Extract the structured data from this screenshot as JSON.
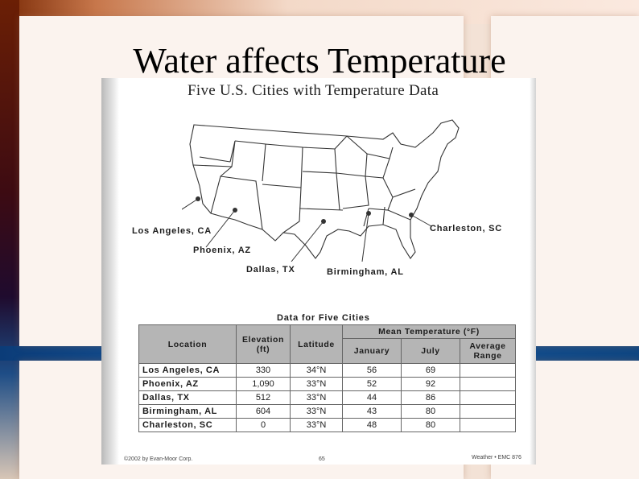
{
  "slide": {
    "title": "Water affects Temperature"
  },
  "worksheet": {
    "map_title": "Five U.S. Cities with Temperature Data",
    "cities": [
      "Los Angeles, CA",
      "Phoenix, AZ",
      "Dallas, TX",
      "Birmingham, AL",
      "Charleston, SC"
    ],
    "table_title": "Data for Five Cities",
    "columns": {
      "location": "Location",
      "elevation": "Elevation (ft)",
      "latitude": "Latitude",
      "mean_temp": "Mean Temperature (°F)",
      "january": "January",
      "july": "July",
      "avg_range": "Average Range"
    },
    "rows": [
      {
        "location": "Los Angeles, CA",
        "elevation": "330",
        "latitude": "34°N",
        "january": "56",
        "july": "69",
        "range": ""
      },
      {
        "location": "Phoenix, AZ",
        "elevation": "1,090",
        "latitude": "33°N",
        "january": "52",
        "july": "92",
        "range": ""
      },
      {
        "location": "Dallas, TX",
        "elevation": "512",
        "latitude": "33°N",
        "january": "44",
        "july": "86",
        "range": ""
      },
      {
        "location": "Birmingham, AL",
        "elevation": "604",
        "latitude": "33°N",
        "january": "43",
        "july": "80",
        "range": ""
      },
      {
        "location": "Charleston, SC",
        "elevation": "0",
        "latitude": "33°N",
        "january": "48",
        "july": "80",
        "range": ""
      }
    ],
    "footer_left": "©2002 by Evan-Moor Corp.",
    "footer_mid": "65",
    "footer_right": "Weather • EMC 876"
  }
}
